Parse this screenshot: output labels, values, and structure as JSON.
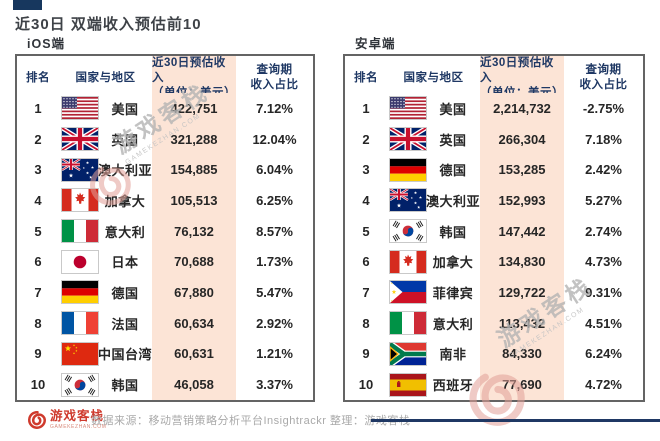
{
  "title": "近30日 双端收入预估前10",
  "headers": {
    "rank": "排名",
    "country": "国家与地区",
    "revenue_line1": "近30日预估收入",
    "revenue_line2": "（单位：美元）",
    "share_line1": "查询期",
    "share_line2": "收入占比"
  },
  "tables": [
    {
      "platform": "iOS端",
      "rows": [
        {
          "rank": "1",
          "country": "美国",
          "flag": "us",
          "revenue": "422,751",
          "share": "7.12%"
        },
        {
          "rank": "2",
          "country": "英国",
          "flag": "gb",
          "revenue": "321,288",
          "share": "12.04%"
        },
        {
          "rank": "3",
          "country": "澳大利亚",
          "flag": "au",
          "revenue": "154,885",
          "share": "6.04%"
        },
        {
          "rank": "4",
          "country": "加拿大",
          "flag": "ca",
          "revenue": "105,513",
          "share": "6.25%"
        },
        {
          "rank": "5",
          "country": "意大利",
          "flag": "it",
          "revenue": "76,132",
          "share": "8.57%"
        },
        {
          "rank": "6",
          "country": "日本",
          "flag": "jp",
          "revenue": "70,688",
          "share": "1.73%"
        },
        {
          "rank": "7",
          "country": "德国",
          "flag": "de",
          "revenue": "67,880",
          "share": "5.47%"
        },
        {
          "rank": "8",
          "country": "法国",
          "flag": "fr",
          "revenue": "60,634",
          "share": "2.92%"
        },
        {
          "rank": "9",
          "country": "中国台湾",
          "flag": "cn",
          "revenue": "60,631",
          "share": "1.21%"
        },
        {
          "rank": "10",
          "country": "韩国",
          "flag": "kr",
          "revenue": "46,058",
          "share": "3.37%"
        }
      ]
    },
    {
      "platform": "安卓端",
      "rows": [
        {
          "rank": "1",
          "country": "美国",
          "flag": "us",
          "revenue": "2,214,732",
          "share": "-2.75%"
        },
        {
          "rank": "2",
          "country": "英国",
          "flag": "gb",
          "revenue": "266,304",
          "share": "7.18%"
        },
        {
          "rank": "3",
          "country": "德国",
          "flag": "de",
          "revenue": "153,285",
          "share": "2.42%"
        },
        {
          "rank": "4",
          "country": "澳大利亚",
          "flag": "au",
          "revenue": "152,993",
          "share": "5.27%"
        },
        {
          "rank": "5",
          "country": "韩国",
          "flag": "kr",
          "revenue": "147,442",
          "share": "2.74%"
        },
        {
          "rank": "6",
          "country": "加拿大",
          "flag": "ca",
          "revenue": "134,830",
          "share": "4.73%"
        },
        {
          "rank": "7",
          "country": "菲律宾",
          "flag": "ph",
          "revenue": "129,722",
          "share": "9.31%"
        },
        {
          "rank": "8",
          "country": "意大利",
          "flag": "it",
          "revenue": "113,432",
          "share": "4.51%"
        },
        {
          "rank": "9",
          "country": "南非",
          "flag": "za",
          "revenue": "84,330",
          "share": "6.24%"
        },
        {
          "rank": "10",
          "country": "西班牙",
          "flag": "es",
          "revenue": "77,690",
          "share": "4.72%"
        }
      ]
    }
  ],
  "watermark": {
    "text": "游戏客栈",
    "subtext": "GAMEKEZHAN.COM"
  },
  "footer": {
    "brand": "游戏客栈",
    "brand_sub": "GAMEKEZHAN.COM",
    "source": "数据来源：移动营销策略分析平台Insightrackr  整理：游戏客栈"
  },
  "colors": {
    "accent_navy": "#1f3864",
    "peach_column": "#fce4d6",
    "brand_red": "#cf3a2d",
    "text_dark": "#262626",
    "watermark_gray": "#b4b4b4"
  }
}
